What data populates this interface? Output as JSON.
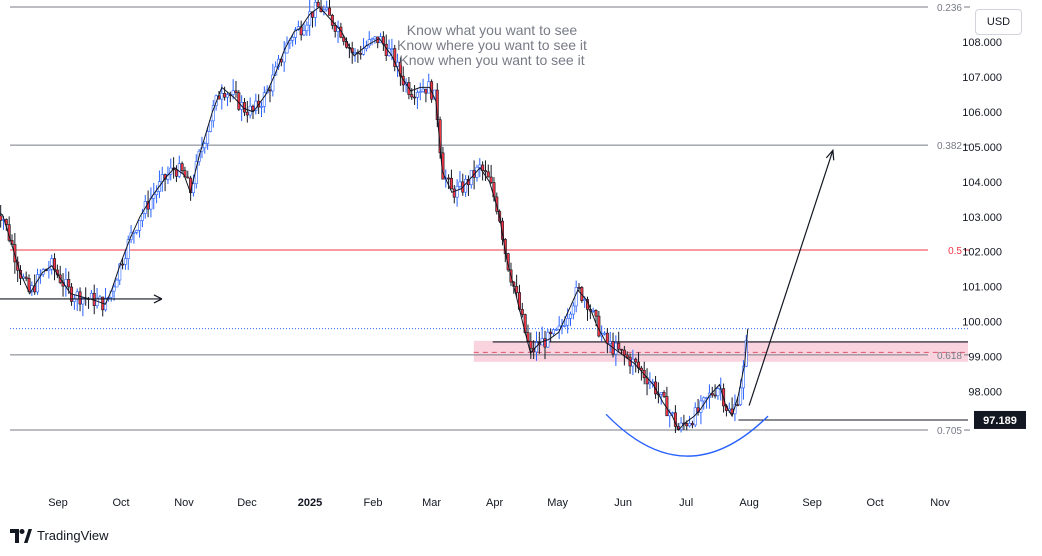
{
  "header": {
    "currency": "USD"
  },
  "branding": {
    "name": "TradingView"
  },
  "chart_data": {
    "type": "candlestick",
    "x_ticks": [
      {
        "label": "Sep",
        "t": 1.0
      },
      {
        "label": "Oct",
        "t": 2.0
      },
      {
        "label": "Nov",
        "t": 3.0
      },
      {
        "label": "Dec",
        "t": 4.0
      },
      {
        "label": "2025",
        "t": 5.0,
        "bold": true
      },
      {
        "label": "Feb",
        "t": 6.0
      },
      {
        "label": "Mar",
        "t": 6.93
      },
      {
        "label": "Apr",
        "t": 7.93
      },
      {
        "label": "May",
        "t": 8.93
      },
      {
        "label": "Jun",
        "t": 9.97
      },
      {
        "label": "Jul",
        "t": 10.97
      },
      {
        "label": "Aug",
        "t": 11.97
      },
      {
        "label": "Sep",
        "t": 12.97
      },
      {
        "label": "Oct",
        "t": 13.97
      },
      {
        "label": "Nov",
        "t": 15.0
      }
    ],
    "y_ticks": [
      98.0,
      99.0,
      100.0,
      101.0,
      102.0,
      103.0,
      104.0,
      105.0,
      106.0,
      107.0,
      108.0
    ],
    "y_range": [
      95.3,
      109.2
    ],
    "current_price": {
      "value": 97.189,
      "label": "97.189"
    },
    "fib_levels": [
      {
        "ratio": "0.236",
        "price": 109.0,
        "color": "#787b86"
      },
      {
        "ratio": "0.382",
        "price": 105.05,
        "color": "#787b86"
      },
      {
        "ratio": "0.5",
        "price": 102.05,
        "color": "#f23645"
      },
      {
        "ratio": "0.618",
        "price": 99.05,
        "color": "#787b86"
      },
      {
        "ratio": "0.705",
        "price": 96.9,
        "color": "#787b86"
      }
    ],
    "support_zone": {
      "top": 99.45,
      "bottom": 98.85,
      "mid": 99.12,
      "start_t": 7.6
    },
    "resistance_line": {
      "price": 99.42,
      "start_t": 7.9
    },
    "dotted_level": {
      "price": 99.8
    },
    "annotation": {
      "lines": [
        "Know what you want to see",
        "Know where you want to see it",
        "Know when you want to see it"
      ]
    },
    "price_path": [
      [
        0.0,
        103.2
      ],
      [
        0.12,
        103.05
      ],
      [
        0.25,
        102.3
      ],
      [
        0.4,
        101.4
      ],
      [
        0.55,
        100.8
      ],
      [
        0.75,
        101.4
      ],
      [
        0.9,
        101.6
      ],
      [
        1.05,
        101.2
      ],
      [
        1.2,
        100.8
      ],
      [
        1.4,
        100.7
      ],
      [
        1.6,
        100.6
      ],
      [
        1.75,
        100.5
      ],
      [
        1.85,
        100.9
      ],
      [
        2.0,
        101.7
      ],
      [
        2.15,
        102.4
      ],
      [
        2.3,
        103.0
      ],
      [
        2.5,
        103.6
      ],
      [
        2.7,
        104.1
      ],
      [
        2.85,
        104.4
      ],
      [
        3.0,
        104.2
      ],
      [
        3.1,
        103.7
      ],
      [
        3.25,
        104.8
      ],
      [
        3.45,
        106.0
      ],
      [
        3.6,
        106.7
      ],
      [
        3.8,
        106.4
      ],
      [
        3.95,
        106.1
      ],
      [
        4.1,
        106.0
      ],
      [
        4.3,
        106.5
      ],
      [
        4.45,
        107.1
      ],
      [
        4.6,
        107.8
      ],
      [
        4.75,
        108.3
      ],
      [
        4.85,
        108.4
      ],
      [
        5.0,
        108.8
      ],
      [
        5.15,
        109.0
      ],
      [
        5.3,
        108.7
      ],
      [
        5.5,
        108.3
      ],
      [
        5.7,
        107.6
      ],
      [
        5.9,
        107.9
      ],
      [
        6.1,
        108.1
      ],
      [
        6.3,
        107.6
      ],
      [
        6.45,
        107.0
      ],
      [
        6.6,
        106.6
      ],
      [
        6.75,
        106.7
      ],
      [
        6.9,
        106.7
      ],
      [
        7.0,
        106.3
      ],
      [
        7.1,
        104.3
      ],
      [
        7.25,
        103.7
      ],
      [
        7.4,
        103.8
      ],
      [
        7.55,
        104.1
      ],
      [
        7.7,
        104.4
      ],
      [
        7.85,
        104.0
      ],
      [
        8.0,
        103.1
      ],
      [
        8.12,
        101.8
      ],
      [
        8.25,
        100.9
      ],
      [
        8.4,
        99.8
      ],
      [
        8.5,
        99.1
      ],
      [
        8.65,
        99.4
      ],
      [
        8.8,
        99.5
      ],
      [
        8.95,
        99.7
      ],
      [
        9.1,
        100.3
      ],
      [
        9.25,
        100.9
      ],
      [
        9.4,
        100.6
      ],
      [
        9.55,
        99.9
      ],
      [
        9.7,
        99.4
      ],
      [
        9.85,
        99.2
      ],
      [
        10.0,
        99.0
      ],
      [
        10.15,
        98.8
      ],
      [
        10.3,
        98.5
      ],
      [
        10.45,
        98.2
      ],
      [
        10.6,
        97.7
      ],
      [
        10.75,
        97.3
      ],
      [
        10.85,
        96.9
      ],
      [
        10.95,
        97.1
      ],
      [
        11.1,
        97.3
      ],
      [
        11.2,
        97.5
      ],
      [
        11.35,
        97.9
      ],
      [
        11.5,
        98.2
      ],
      [
        11.6,
        97.6
      ],
      [
        11.7,
        97.3
      ],
      [
        11.8,
        97.9
      ],
      [
        11.9,
        98.8
      ],
      [
        11.95,
        99.8
      ]
    ],
    "left_marker": {
      "price": 100.65,
      "start_t": 0.05,
      "end_t": 2.65
    },
    "projection_arrow": {
      "from": [
        11.97,
        97.6
      ],
      "to": [
        13.3,
        104.9
      ]
    },
    "base_curve": {
      "start": [
        9.7,
        97.35
      ],
      "bottom": [
        10.97,
        95.9
      ],
      "end": [
        12.27,
        97.3
      ]
    }
  }
}
